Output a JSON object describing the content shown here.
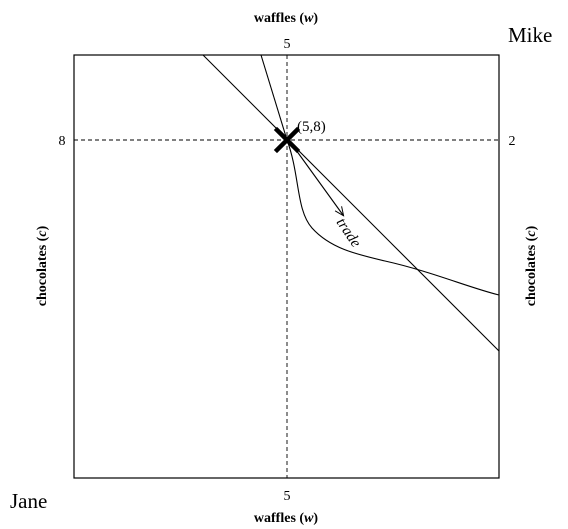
{
  "diagram": {
    "owners": {
      "bottom_left": "Jane",
      "top_right": "Mike"
    },
    "axes": {
      "top": {
        "label": "waffles",
        "variable": "w",
        "tick": "5"
      },
      "bottom": {
        "label": "waffles",
        "variable": "w",
        "tick": "5"
      },
      "left": {
        "label": "chocolates",
        "variable": "c",
        "tick": "8"
      },
      "right": {
        "label": "chocolates",
        "variable": "c",
        "tick": "2"
      }
    },
    "endowment": {
      "label": "(5,8)",
      "w": 5,
      "c": 8
    },
    "trade_label": "trade"
  }
}
